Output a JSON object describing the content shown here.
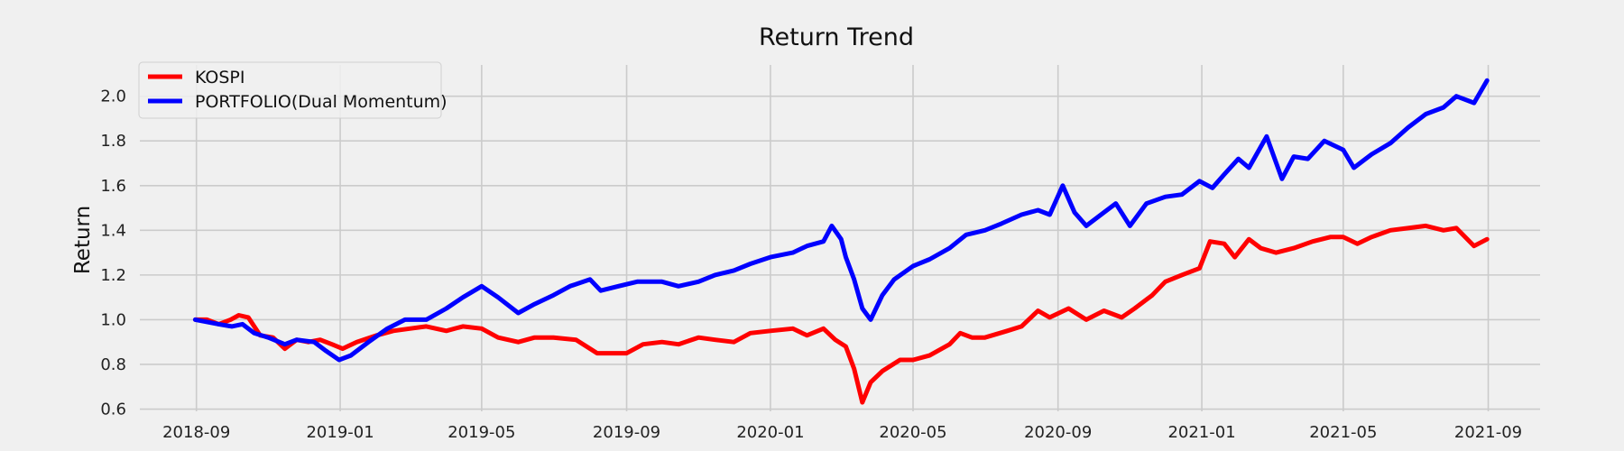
{
  "chart_data": {
    "type": "line",
    "title": "Return Trend",
    "xlabel": "",
    "ylabel": "Return",
    "x_ticks": [
      "2018-09",
      "2019-01",
      "2019-05",
      "2019-09",
      "2020-01",
      "2020-05",
      "2020-09",
      "2021-01",
      "2021-05",
      "2021-09"
    ],
    "y_ticks": [
      "0.6",
      "0.8",
      "1.0",
      "1.2",
      "1.4",
      "1.6",
      "1.8",
      "2.0"
    ],
    "xlim": [
      "2018-07-15",
      "2021-10-15"
    ],
    "ylim": [
      0.59,
      2.14
    ],
    "grid": true,
    "legend_position": "top-left",
    "series": [
      {
        "name": "KOSPI",
        "color": "#ff0000",
        "points": [
          [
            "2018-08-31",
            1.0
          ],
          [
            "2018-09-10",
            1.0
          ],
          [
            "2018-09-20",
            0.98
          ],
          [
            "2018-09-30",
            1.0
          ],
          [
            "2018-10-07",
            1.02
          ],
          [
            "2018-10-15",
            1.01
          ],
          [
            "2018-10-25",
            0.93
          ],
          [
            "2018-11-05",
            0.92
          ],
          [
            "2018-11-15",
            0.87
          ],
          [
            "2018-11-25",
            0.91
          ],
          [
            "2018-12-05",
            0.9
          ],
          [
            "2018-12-15",
            0.91
          ],
          [
            "2018-12-25",
            0.89
          ],
          [
            "2019-01-03",
            0.87
          ],
          [
            "2019-01-15",
            0.9
          ],
          [
            "2019-02-01",
            0.93
          ],
          [
            "2019-02-15",
            0.95
          ],
          [
            "2019-03-01",
            0.96
          ],
          [
            "2019-03-15",
            0.97
          ],
          [
            "2019-04-01",
            0.95
          ],
          [
            "2019-04-15",
            0.97
          ],
          [
            "2019-05-01",
            0.96
          ],
          [
            "2019-05-15",
            0.92
          ],
          [
            "2019-06-01",
            0.9
          ],
          [
            "2019-06-15",
            0.92
          ],
          [
            "2019-07-01",
            0.92
          ],
          [
            "2019-07-20",
            0.91
          ],
          [
            "2019-08-07",
            0.85
          ],
          [
            "2019-08-20",
            0.85
          ],
          [
            "2019-09-01",
            0.85
          ],
          [
            "2019-09-15",
            0.89
          ],
          [
            "2019-10-01",
            0.9
          ],
          [
            "2019-10-15",
            0.89
          ],
          [
            "2019-11-01",
            0.92
          ],
          [
            "2019-11-15",
            0.91
          ],
          [
            "2019-12-01",
            0.9
          ],
          [
            "2019-12-15",
            0.94
          ],
          [
            "2020-01-01",
            0.95
          ],
          [
            "2020-01-20",
            0.96
          ],
          [
            "2020-02-01",
            0.93
          ],
          [
            "2020-02-15",
            0.96
          ],
          [
            "2020-02-25",
            0.91
          ],
          [
            "2020-03-05",
            0.88
          ],
          [
            "2020-03-12",
            0.78
          ],
          [
            "2020-03-19",
            0.63
          ],
          [
            "2020-03-26",
            0.72
          ],
          [
            "2020-04-05",
            0.77
          ],
          [
            "2020-04-20",
            0.82
          ],
          [
            "2020-05-01",
            0.82
          ],
          [
            "2020-05-15",
            0.84
          ],
          [
            "2020-06-01",
            0.89
          ],
          [
            "2020-06-10",
            0.94
          ],
          [
            "2020-06-20",
            0.92
          ],
          [
            "2020-07-01",
            0.92
          ],
          [
            "2020-07-20",
            0.95
          ],
          [
            "2020-08-01",
            0.97
          ],
          [
            "2020-08-15",
            1.04
          ],
          [
            "2020-08-25",
            1.01
          ],
          [
            "2020-09-10",
            1.05
          ],
          [
            "2020-09-25",
            1.0
          ],
          [
            "2020-10-10",
            1.04
          ],
          [
            "2020-10-25",
            1.01
          ],
          [
            "2020-11-05",
            1.05
          ],
          [
            "2020-11-20",
            1.11
          ],
          [
            "2020-12-01",
            1.17
          ],
          [
            "2020-12-15",
            1.2
          ],
          [
            "2020-12-30",
            1.23
          ],
          [
            "2021-01-08",
            1.35
          ],
          [
            "2021-01-20",
            1.34
          ],
          [
            "2021-01-29",
            1.28
          ],
          [
            "2021-02-10",
            1.36
          ],
          [
            "2021-02-20",
            1.32
          ],
          [
            "2021-03-05",
            1.3
          ],
          [
            "2021-03-20",
            1.32
          ],
          [
            "2021-04-05",
            1.35
          ],
          [
            "2021-04-20",
            1.37
          ],
          [
            "2021-05-01",
            1.37
          ],
          [
            "2021-05-13",
            1.34
          ],
          [
            "2021-05-25",
            1.37
          ],
          [
            "2021-06-10",
            1.4
          ],
          [
            "2021-06-25",
            1.41
          ],
          [
            "2021-07-10",
            1.42
          ],
          [
            "2021-07-25",
            1.4
          ],
          [
            "2021-08-05",
            1.41
          ],
          [
            "2021-08-20",
            1.33
          ],
          [
            "2021-08-31",
            1.36
          ]
        ]
      },
      {
        "name": "PORTFOLIO(Dual Momentum)",
        "color": "#0000ff",
        "points": [
          [
            "2018-08-31",
            1.0
          ],
          [
            "2018-09-10",
            0.99
          ],
          [
            "2018-09-20",
            0.98
          ],
          [
            "2018-10-01",
            0.97
          ],
          [
            "2018-10-10",
            0.98
          ],
          [
            "2018-10-20",
            0.94
          ],
          [
            "2018-11-01",
            0.92
          ],
          [
            "2018-11-15",
            0.89
          ],
          [
            "2018-11-25",
            0.91
          ],
          [
            "2018-12-10",
            0.9
          ],
          [
            "2018-12-20",
            0.86
          ],
          [
            "2018-12-31",
            0.82
          ],
          [
            "2019-01-10",
            0.84
          ],
          [
            "2019-01-25",
            0.9
          ],
          [
            "2019-02-10",
            0.96
          ],
          [
            "2019-02-25",
            1.0
          ],
          [
            "2019-03-15",
            1.0
          ],
          [
            "2019-04-01",
            1.05
          ],
          [
            "2019-04-15",
            1.1
          ],
          [
            "2019-05-01",
            1.15
          ],
          [
            "2019-05-15",
            1.1
          ],
          [
            "2019-06-01",
            1.03
          ],
          [
            "2019-06-15",
            1.07
          ],
          [
            "2019-07-01",
            1.11
          ],
          [
            "2019-07-15",
            1.15
          ],
          [
            "2019-08-01",
            1.18
          ],
          [
            "2019-08-10",
            1.13
          ],
          [
            "2019-08-25",
            1.15
          ],
          [
            "2019-09-10",
            1.17
          ],
          [
            "2019-10-01",
            1.17
          ],
          [
            "2019-10-15",
            1.15
          ],
          [
            "2019-11-01",
            1.17
          ],
          [
            "2019-11-15",
            1.2
          ],
          [
            "2019-12-01",
            1.22
          ],
          [
            "2019-12-15",
            1.25
          ],
          [
            "2020-01-01",
            1.28
          ],
          [
            "2020-01-20",
            1.3
          ],
          [
            "2020-02-01",
            1.33
          ],
          [
            "2020-02-15",
            1.35
          ],
          [
            "2020-02-22",
            1.42
          ],
          [
            "2020-03-01",
            1.36
          ],
          [
            "2020-03-05",
            1.28
          ],
          [
            "2020-03-12",
            1.18
          ],
          [
            "2020-03-19",
            1.05
          ],
          [
            "2020-03-26",
            1.0
          ],
          [
            "2020-04-05",
            1.11
          ],
          [
            "2020-04-15",
            1.18
          ],
          [
            "2020-05-01",
            1.24
          ],
          [
            "2020-05-15",
            1.27
          ],
          [
            "2020-06-01",
            1.32
          ],
          [
            "2020-06-15",
            1.38
          ],
          [
            "2020-07-01",
            1.4
          ],
          [
            "2020-07-15",
            1.43
          ],
          [
            "2020-08-01",
            1.47
          ],
          [
            "2020-08-15",
            1.49
          ],
          [
            "2020-08-25",
            1.47
          ],
          [
            "2020-09-05",
            1.6
          ],
          [
            "2020-09-15",
            1.48
          ],
          [
            "2020-09-25",
            1.42
          ],
          [
            "2020-10-10",
            1.48
          ],
          [
            "2020-10-20",
            1.52
          ],
          [
            "2020-11-01",
            1.42
          ],
          [
            "2020-11-15",
            1.52
          ],
          [
            "2020-12-01",
            1.55
          ],
          [
            "2020-12-15",
            1.56
          ],
          [
            "2020-12-30",
            1.62
          ],
          [
            "2021-01-10",
            1.59
          ],
          [
            "2021-01-20",
            1.65
          ],
          [
            "2021-02-01",
            1.72
          ],
          [
            "2021-02-10",
            1.68
          ],
          [
            "2021-02-25",
            1.82
          ],
          [
            "2021-03-10",
            1.63
          ],
          [
            "2021-03-20",
            1.73
          ],
          [
            "2021-04-01",
            1.72
          ],
          [
            "2021-04-15",
            1.8
          ],
          [
            "2021-05-01",
            1.76
          ],
          [
            "2021-05-10",
            1.68
          ],
          [
            "2021-05-25",
            1.74
          ],
          [
            "2021-06-10",
            1.79
          ],
          [
            "2021-06-25",
            1.86
          ],
          [
            "2021-07-10",
            1.92
          ],
          [
            "2021-07-25",
            1.95
          ],
          [
            "2021-08-05",
            2.0
          ],
          [
            "2021-08-20",
            1.97
          ],
          [
            "2021-08-31",
            2.07
          ]
        ]
      }
    ]
  }
}
